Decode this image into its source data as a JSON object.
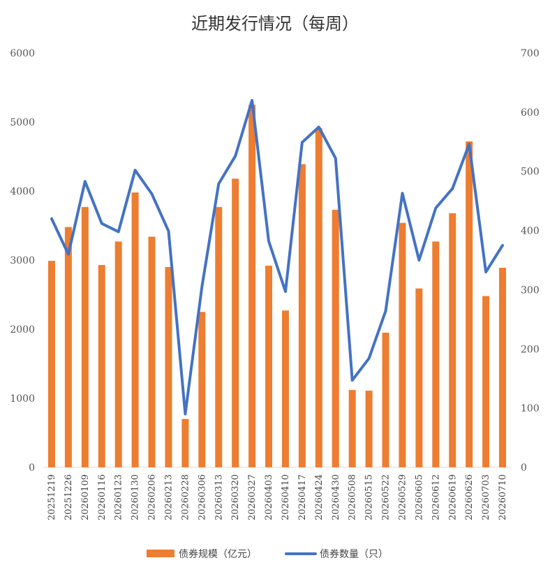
{
  "chart_data": {
    "type": "bar+line",
    "title": "近期发行情况（每周）",
    "categories": [
      "20251219",
      "20251226",
      "20260109",
      "20260116",
      "20260123",
      "20260130",
      "20260206",
      "20260213",
      "20260228",
      "20260306",
      "20260313",
      "20260320",
      "20260327",
      "20260403",
      "20260410",
      "20260417",
      "20260424",
      "20260430",
      "20260508",
      "20260515",
      "20260522",
      "20260529",
      "20260605",
      "20260612",
      "20260619",
      "20260626",
      "20260703",
      "20260710"
    ],
    "series": [
      {
        "name": "债券规模（亿元）",
        "type": "bar",
        "axis": "left",
        "color": "#ED7D31",
        "values": [
          2990,
          3480,
          3770,
          2930,
          3270,
          3980,
          3340,
          2900,
          700,
          2250,
          3770,
          4180,
          5250,
          2920,
          2270,
          4390,
          4910,
          3730,
          1120,
          1110,
          1950,
          3540,
          2590,
          3270,
          3680,
          4720,
          2480,
          2890
        ]
      },
      {
        "name": "债券数量（只）",
        "type": "line",
        "axis": "right",
        "color": "#4472C4",
        "values": [
          420,
          360,
          483,
          412,
          398,
          502,
          462,
          399,
          90,
          305,
          479,
          526,
          620,
          382,
          297,
          549,
          575,
          522,
          147,
          184,
          264,
          463,
          350,
          438,
          471,
          546,
          330,
          375
        ]
      }
    ],
    "y_left": {
      "min": 0,
      "max": 6000,
      "ticks": [
        "0",
        "1000",
        "2000",
        "3000",
        "4000",
        "5000",
        "6000"
      ]
    },
    "y_right": {
      "min": 0,
      "max": 700,
      "ticks": [
        "0",
        "100",
        "200",
        "300",
        "400",
        "500",
        "600",
        "700"
      ]
    },
    "grid": false,
    "legend_position": "bottom"
  }
}
